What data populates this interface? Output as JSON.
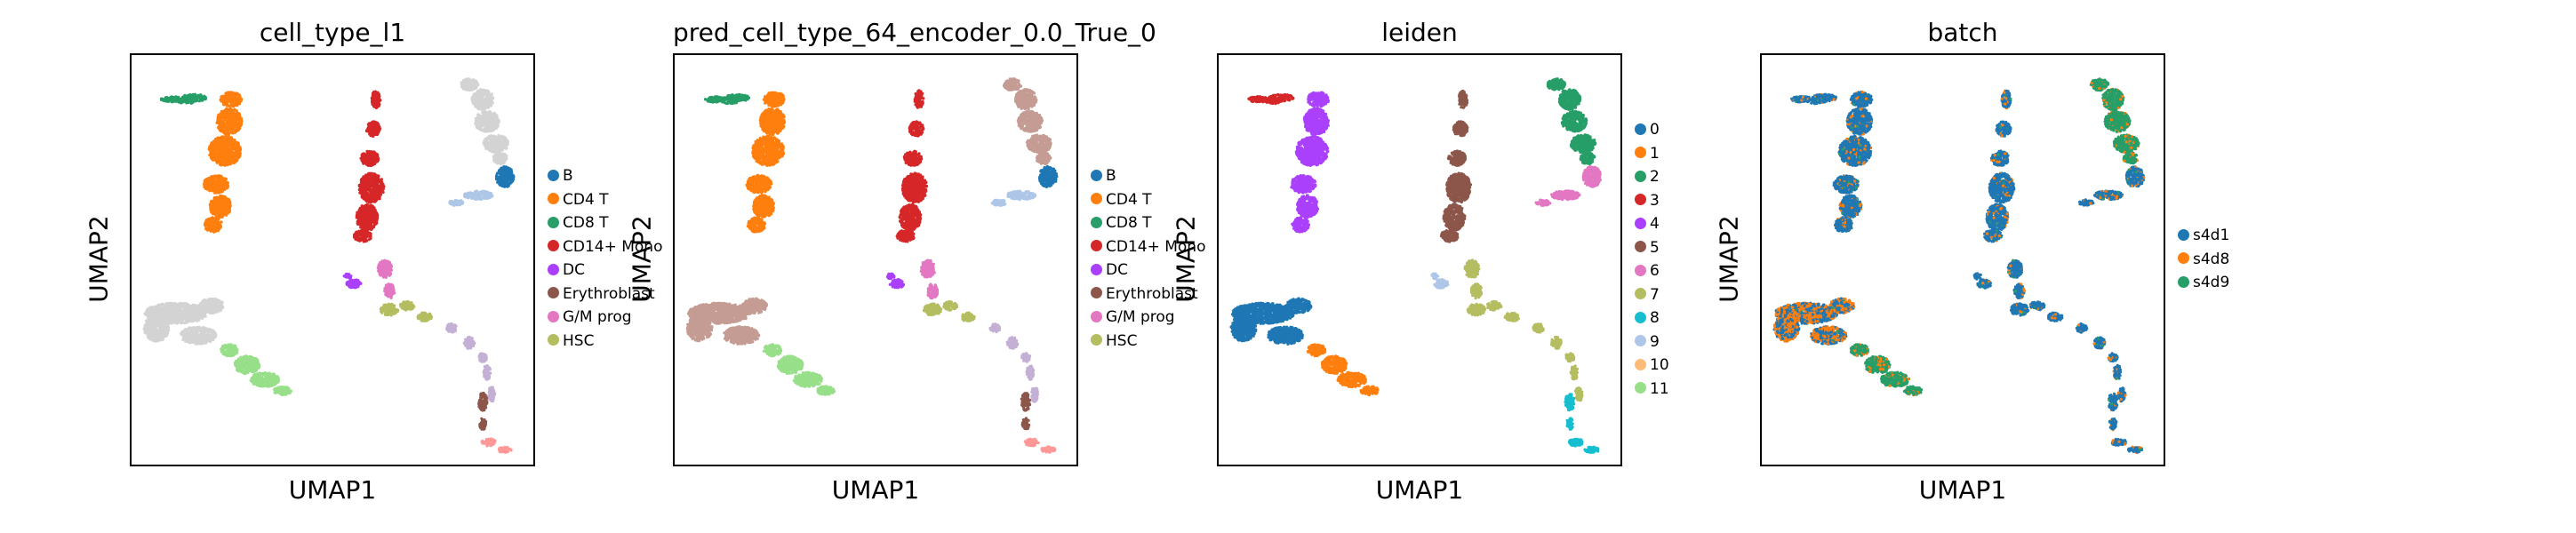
{
  "chart_data": [
    {
      "type": "scatter",
      "title": "cell_type_l1",
      "xlabel": "UMAP1",
      "ylabel": "UMAP2",
      "legend_placement": "right",
      "legend": [
        {
          "label": "B",
          "color": "#1f77b4"
        },
        {
          "label": "CD4 T",
          "color": "#ff7f0e"
        },
        {
          "label": "CD8 T",
          "color": "#279e68"
        },
        {
          "label": "CD14+ Mono",
          "color": "#d62728"
        },
        {
          "label": "DC",
          "color": "#aa40fc"
        },
        {
          "label": "Erythroblast",
          "color": "#8c564b"
        },
        {
          "label": "G/M prog",
          "color": "#e377c2"
        },
        {
          "label": "HSC",
          "color": "#b5bd61"
        }
      ]
    },
    {
      "type": "scatter",
      "title": "pred_cell_type_64_encoder_0.0_True_0",
      "xlabel": "UMAP1",
      "ylabel": "UMAP2",
      "legend_placement": "right",
      "legend": [
        {
          "label": "B",
          "color": "#1f77b4"
        },
        {
          "label": "CD4 T",
          "color": "#ff7f0e"
        },
        {
          "label": "CD8 T",
          "color": "#279e68"
        },
        {
          "label": "CD14+ Mono",
          "color": "#d62728"
        },
        {
          "label": "DC",
          "color": "#aa40fc"
        },
        {
          "label": "Erythroblast",
          "color": "#8c564b"
        },
        {
          "label": "G/M prog",
          "color": "#e377c2"
        },
        {
          "label": "HSC",
          "color": "#b5bd61"
        }
      ]
    },
    {
      "type": "scatter",
      "title": "leiden",
      "xlabel": "UMAP1",
      "ylabel": "UMAP2",
      "legend_placement": "right",
      "legend": [
        {
          "label": "0",
          "color": "#1f77b4"
        },
        {
          "label": "1",
          "color": "#ff7f0e"
        },
        {
          "label": "2",
          "color": "#279e68"
        },
        {
          "label": "3",
          "color": "#d62728"
        },
        {
          "label": "4",
          "color": "#aa40fc"
        },
        {
          "label": "5",
          "color": "#8c564b"
        },
        {
          "label": "6",
          "color": "#e377c2"
        },
        {
          "label": "7",
          "color": "#b5bd61"
        },
        {
          "label": "8",
          "color": "#17becf"
        },
        {
          "label": "9",
          "color": "#aec7e8"
        },
        {
          "label": "10",
          "color": "#ffbb78"
        },
        {
          "label": "11",
          "color": "#98df8a"
        }
      ]
    },
    {
      "type": "scatter",
      "title": "batch",
      "xlabel": "UMAP1",
      "ylabel": "UMAP2",
      "legend_placement": "right",
      "legend": [
        {
          "label": "s4d1",
          "color": "#1f77b4"
        },
        {
          "label": "s4d8",
          "color": "#ff7f0e"
        },
        {
          "label": "s4d9",
          "color": "#279e68"
        }
      ]
    }
  ]
}
